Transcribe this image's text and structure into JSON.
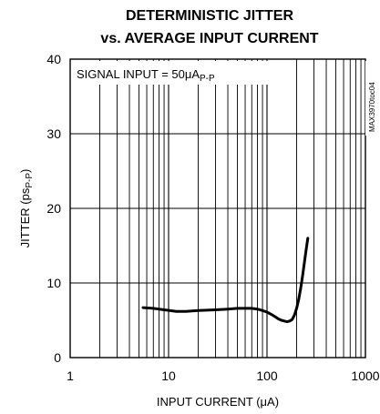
{
  "chart_data": {
    "type": "line",
    "title_line1": "DETERMINISTIC JITTER",
    "title_line2": "vs. AVERAGE INPUT CURRENT",
    "xlabel": "INPUT CURRENT (μA)",
    "ylabel_main": "JITTER (ps",
    "ylabel_sub": "P-P",
    "ylabel_end": ")",
    "x_scale": "log",
    "xlim": [
      1,
      1000
    ],
    "ylim": [
      0,
      40
    ],
    "x_ticks": [
      1,
      10,
      100,
      1000
    ],
    "x_tick_labels": [
      "1",
      "10",
      "100",
      "1000"
    ],
    "y_ticks": [
      0,
      10,
      20,
      30,
      40
    ],
    "y_tick_labels": [
      "0",
      "10",
      "20",
      "30",
      "40"
    ],
    "grid": true,
    "annotation_main": "SIGNAL INPUT = 50μA",
    "annotation_sub": "P-P",
    "part_number": "MAX3970toc04",
    "line_color": "#000000",
    "series": [
      {
        "x": [
          5.5,
          7,
          9,
          12,
          15,
          20,
          30,
          40,
          50,
          60,
          70,
          80,
          90,
          100,
          110,
          120,
          130,
          140,
          150,
          160,
          170,
          180,
          190,
          200,
          210,
          220,
          230,
          240,
          250,
          260
        ],
        "y": [
          6.7,
          6.6,
          6.4,
          6.2,
          6.2,
          6.3,
          6.4,
          6.5,
          6.6,
          6.6,
          6.6,
          6.5,
          6.3,
          6.1,
          5.8,
          5.5,
          5.2,
          5.0,
          4.9,
          4.8,
          4.9,
          5.1,
          5.7,
          6.6,
          7.8,
          9.3,
          11.0,
          12.8,
          14.5,
          16.0
        ]
      }
    ]
  }
}
